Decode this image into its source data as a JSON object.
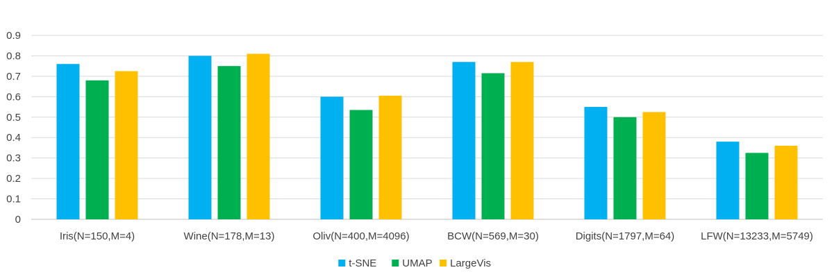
{
  "chart_data": {
    "type": "bar",
    "categories": [
      "Iris(N=150,M=4)",
      "Wine(N=178,M=13)",
      "Oliv(N=400,M=4096)",
      "BCW(N=569,M=30)",
      "Digits(N=1797,M=64)",
      "LFW(N=13233,M=5749)"
    ],
    "series": [
      {
        "name": "t-SNE",
        "color": "#00b0f0",
        "values": [
          0.76,
          0.8,
          0.6,
          0.77,
          0.55,
          0.38
        ]
      },
      {
        "name": "UMAP",
        "color": "#00b050",
        "values": [
          0.68,
          0.75,
          0.535,
          0.715,
          0.5,
          0.325
        ]
      },
      {
        "name": "LargeVis",
        "color": "#ffc000",
        "values": [
          0.725,
          0.81,
          0.605,
          0.77,
          0.525,
          0.36
        ]
      }
    ],
    "yticks": [
      "0",
      "0.1",
      "0.2",
      "0.3",
      "0.4",
      "0.5",
      "0.6",
      "0.7",
      "0.8",
      "0.9"
    ],
    "ylim": [
      0,
      0.9
    ],
    "grid": true,
    "legend": "bottom",
    "title": "",
    "xlabel": "",
    "ylabel": ""
  }
}
